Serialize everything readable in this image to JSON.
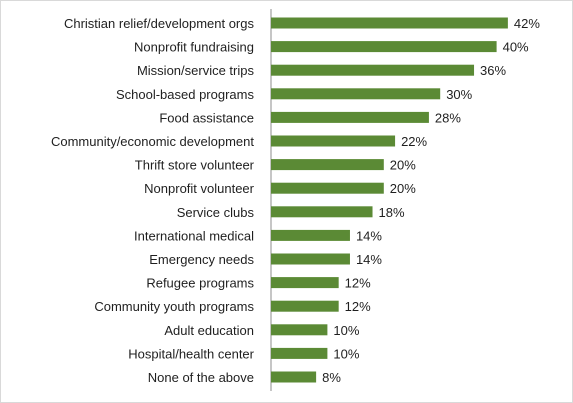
{
  "chart_data": {
    "type": "bar",
    "orientation": "horizontal",
    "categories": [
      "Christian relief/development orgs",
      "Nonprofit fundraising",
      "Mission/service trips",
      "School-based programs",
      "Food assistance",
      "Community/economic development",
      "Thrift store volunteer",
      "Nonprofit volunteer",
      "Service clubs",
      "International medical",
      "Emergency needs",
      "Refugee programs",
      "Community youth programs",
      "Adult education",
      "Hospital/health center",
      "None of the above"
    ],
    "values": [
      42,
      40,
      36,
      30,
      28,
      22,
      20,
      20,
      18,
      14,
      14,
      12,
      12,
      10,
      10,
      8
    ],
    "value_labels": [
      "42%",
      "40%",
      "36%",
      "30%",
      "28%",
      "22%",
      "20%",
      "20%",
      "18%",
      "14%",
      "14%",
      "12%",
      "12%",
      "10%",
      "10%",
      "8%"
    ],
    "unit": "%",
    "xlim": [
      0,
      45
    ],
    "grid": false,
    "legend": "none",
    "bar_color": "#5b8a35"
  }
}
